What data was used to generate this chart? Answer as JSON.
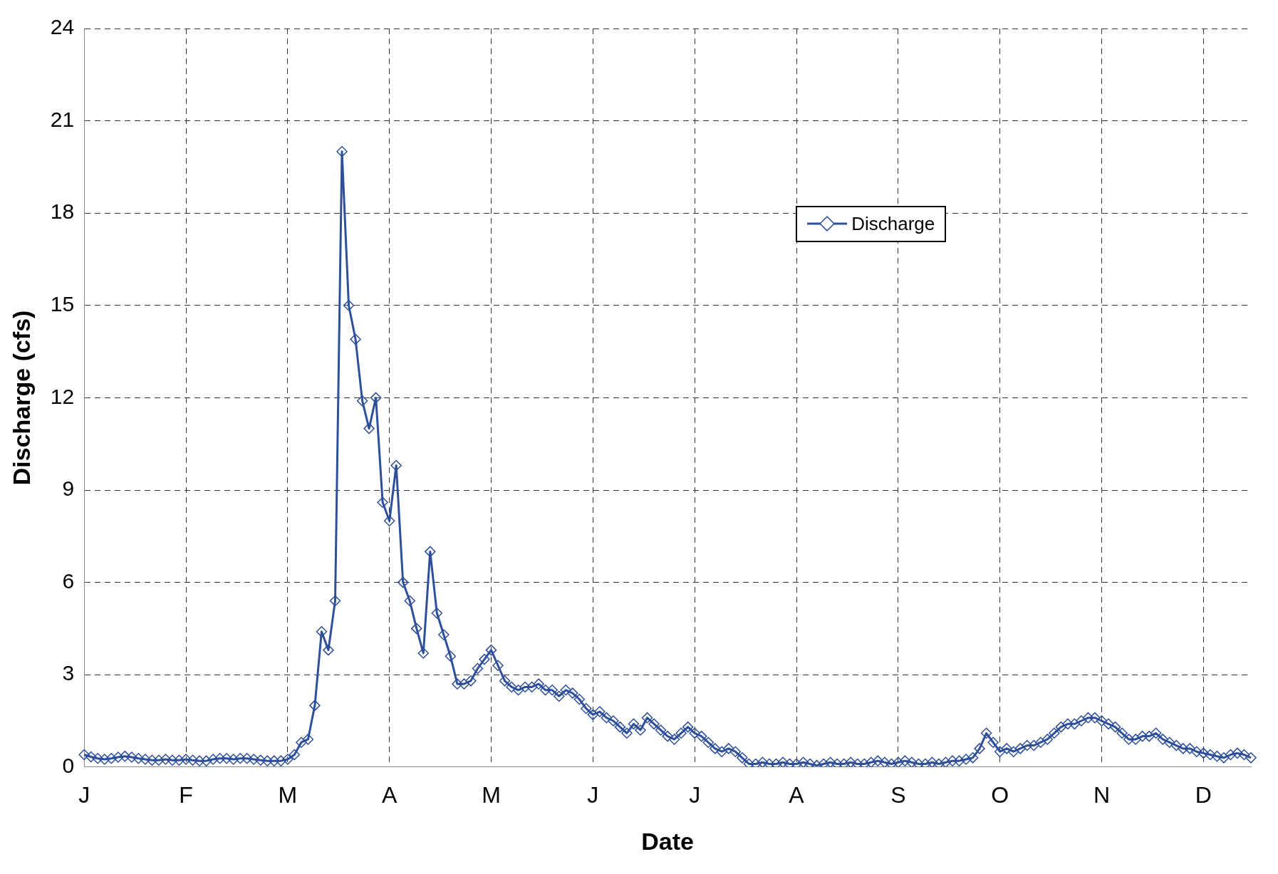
{
  "chart_data": {
    "type": "line",
    "xlabel": "Date",
    "ylabel": "Discharge (cfs)",
    "categories": [
      "J",
      null,
      null,
      null,
      null,
      null,
      null,
      null,
      null,
      null,
      null,
      null,
      null,
      null,
      null,
      "F",
      null,
      null,
      null,
      null,
      null,
      null,
      null,
      null,
      null,
      null,
      null,
      null,
      null,
      null,
      "M",
      null,
      null,
      null,
      null,
      null,
      null,
      null,
      null,
      null,
      null,
      null,
      null,
      null,
      null,
      "A",
      null,
      null,
      null,
      null,
      null,
      null,
      null,
      null,
      null,
      null,
      null,
      null,
      null,
      null,
      "M",
      null,
      null,
      null,
      null,
      null,
      null,
      null,
      null,
      null,
      null,
      null,
      null,
      null,
      null,
      "J",
      null,
      null,
      null,
      null,
      null,
      null,
      null,
      null,
      null,
      null,
      null,
      null,
      null,
      null,
      "J",
      null,
      null,
      null,
      null,
      null,
      null,
      null,
      null,
      null,
      null,
      null,
      null,
      null,
      null,
      "A",
      null,
      null,
      null,
      null,
      null,
      null,
      null,
      null,
      null,
      null,
      null,
      null,
      null,
      null,
      "S",
      null,
      null,
      null,
      null,
      null,
      null,
      null,
      null,
      null,
      null,
      null,
      null,
      null,
      null,
      "O",
      null,
      null,
      null,
      null,
      null,
      null,
      null,
      null,
      null,
      null,
      null,
      null,
      null,
      null,
      "N",
      null,
      null,
      null,
      null,
      null,
      null,
      null,
      null,
      null,
      null,
      null,
      null,
      null,
      null,
      "D",
      null,
      null,
      null,
      null,
      null,
      null,
      null
    ],
    "ylim": [
      0,
      24
    ],
    "yticks": [
      0,
      3,
      6,
      9,
      12,
      15,
      18,
      21,
      24
    ],
    "grid": true,
    "legend": "top right",
    "marker": "diamond",
    "line_style": "solid",
    "series": [
      {
        "name": "Discharge",
        "color": "#2e4f9a",
        "values": [
          0.4,
          0.33,
          0.28,
          0.25,
          0.28,
          0.32,
          0.35,
          0.32,
          0.28,
          0.25,
          0.22,
          0.22,
          0.25,
          0.22,
          0.22,
          0.25,
          0.22,
          0.2,
          0.2,
          0.25,
          0.28,
          0.28,
          0.25,
          0.28,
          0.28,
          0.25,
          0.22,
          0.2,
          0.2,
          0.2,
          0.25,
          0.4,
          0.8,
          0.9,
          2.0,
          4.4,
          3.8,
          5.4,
          20.0,
          15.0,
          13.9,
          11.9,
          11.0,
          12.0,
          8.6,
          8.0,
          9.8,
          6.0,
          5.4,
          4.5,
          3.7,
          7.0,
          5.0,
          4.3,
          3.6,
          2.7,
          2.7,
          2.8,
          3.2,
          3.5,
          3.8,
          3.3,
          2.8,
          2.6,
          2.5,
          2.6,
          2.6,
          2.7,
          2.5,
          2.5,
          2.3,
          2.5,
          2.4,
          2.2,
          1.9,
          1.7,
          1.8,
          1.6,
          1.5,
          1.3,
          1.1,
          1.4,
          1.2,
          1.6,
          1.4,
          1.2,
          1.0,
          0.9,
          1.1,
          1.3,
          1.1,
          1.0,
          0.8,
          0.6,
          0.5,
          0.6,
          0.5,
          0.3,
          0.1,
          0.1,
          0.15,
          0.1,
          0.1,
          0.15,
          0.1,
          0.1,
          0.15,
          0.1,
          0.05,
          0.1,
          0.15,
          0.1,
          0.1,
          0.15,
          0.1,
          0.1,
          0.15,
          0.2,
          0.15,
          0.1,
          0.15,
          0.2,
          0.15,
          0.1,
          0.1,
          0.15,
          0.1,
          0.15,
          0.2,
          0.2,
          0.25,
          0.3,
          0.6,
          1.1,
          0.8,
          0.5,
          0.6,
          0.5,
          0.6,
          0.7,
          0.7,
          0.8,
          0.9,
          1.1,
          1.3,
          1.4,
          1.4,
          1.5,
          1.6,
          1.6,
          1.5,
          1.4,
          1.3,
          1.1,
          0.9,
          0.9,
          1.0,
          1.0,
          1.1,
          0.9,
          0.8,
          0.7,
          0.6,
          0.6,
          0.5,
          0.45,
          0.4,
          0.35,
          0.3,
          0.4,
          0.45,
          0.4,
          0.3
        ]
      }
    ]
  }
}
